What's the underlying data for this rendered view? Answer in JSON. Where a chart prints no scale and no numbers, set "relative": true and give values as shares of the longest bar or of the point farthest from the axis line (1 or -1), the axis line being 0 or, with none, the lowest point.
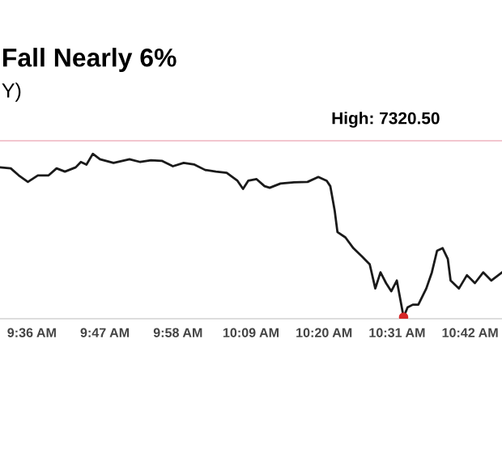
{
  "chart_data": {
    "type": "line",
    "title": "Fall Nearly 6%",
    "subtitle": "Y)",
    "annotations": [
      "High: 7320.50"
    ],
    "relative": true,
    "grid": false,
    "legend": false,
    "line_style": "solid",
    "xlim": [
      9.52,
      10.78
    ],
    "xticks": [
      {
        "value": 9.6,
        "label": "9:36 AM"
      },
      {
        "value": 9.7833,
        "label": "9:47 AM"
      },
      {
        "value": 9.9667,
        "label": "9:58 AM"
      },
      {
        "value": 10.15,
        "label": "10:09 AM"
      },
      {
        "value": 10.3333,
        "label": "10:20 AM"
      },
      {
        "value": 10.5167,
        "label": "10:31 AM"
      },
      {
        "value": 10.7,
        "label": "10:42 AM"
      }
    ],
    "series": [
      {
        "color": "#1a1a1a",
        "x": [
          9.52,
          9.547,
          9.567,
          9.59,
          9.615,
          9.642,
          9.662,
          9.683,
          9.71,
          9.723,
          9.737,
          9.753,
          9.771,
          9.805,
          9.845,
          9.872,
          9.899,
          9.926,
          9.954,
          9.981,
          10.008,
          10.035,
          10.062,
          10.089,
          10.116,
          10.13,
          10.143,
          10.164,
          10.184,
          10.197,
          10.224,
          10.258,
          10.292,
          10.319,
          10.34,
          10.349,
          10.36,
          10.367,
          10.387,
          10.407,
          10.428,
          10.448,
          10.462,
          10.475,
          10.489,
          10.502,
          10.516,
          10.533,
          10.543,
          10.556,
          10.57,
          10.59,
          10.604,
          10.617,
          10.631,
          10.644,
          10.651,
          10.672,
          10.692,
          10.712,
          10.733,
          10.753,
          10.78
        ],
        "values": [
          0.917,
          0.911,
          0.868,
          0.828,
          0.868,
          0.868,
          0.911,
          0.891,
          0.917,
          0.95,
          0.934,
          1.0,
          0.967,
          0.944,
          0.967,
          0.95,
          0.96,
          0.957,
          0.924,
          0.944,
          0.934,
          0.901,
          0.891,
          0.884,
          0.835,
          0.785,
          0.835,
          0.845,
          0.802,
          0.792,
          0.818,
          0.825,
          0.828,
          0.858,
          0.835,
          0.802,
          0.653,
          0.521,
          0.488,
          0.422,
          0.373,
          0.323,
          0.175,
          0.274,
          0.208,
          0.158,
          0.224,
          0.0,
          0.059,
          0.076,
          0.076,
          0.175,
          0.274,
          0.406,
          0.422,
          0.356,
          0.224,
          0.175,
          0.257,
          0.208,
          0.274,
          0.224,
          0.274
        ]
      },
      {
        "type": "scatter",
        "color": "#d62728",
        "x": [
          10.533
        ],
        "values": [
          0.0
        ]
      }
    ]
  }
}
